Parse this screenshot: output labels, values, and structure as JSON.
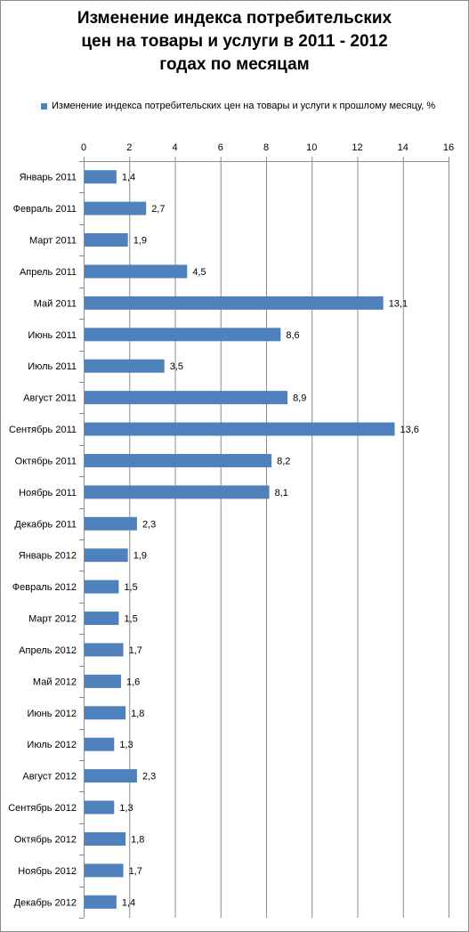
{
  "chart_data": {
    "type": "bar",
    "orientation": "horizontal",
    "title": "Изменение индекса потребительских\nцен на товары и услуги в 2011 - 2012\nгодах по месяцам",
    "legend": "top",
    "grid": true,
    "xlim": [
      0,
      16
    ],
    "ticks": [
      0,
      2,
      4,
      6,
      8,
      10,
      12,
      14,
      16
    ],
    "series": [
      {
        "name": "Изменение  индекса потребительских  цен на товары и услуги к прошлому месяцу, %",
        "color": "#4f81bd"
      }
    ],
    "categories": [
      "Январь 2011",
      "Февраль 2011",
      "Март 2011",
      "Апрель 2011",
      "Май 2011",
      "Июнь 2011",
      "Июль 2011",
      "Август 2011",
      "Сентябрь 2011",
      "Октябрь 2011",
      "Ноябрь 2011",
      "Декабрь 2011",
      "Январь 2012",
      "Февраль 2012",
      "Март 2012",
      "Апрель 2012",
      "Май 2012",
      "Июнь 2012",
      "Июль 2012",
      "Август 2012",
      "Сентябрь 2012",
      "Октябрь 2012",
      "Ноябрь 2012",
      "Декабрь 2012"
    ],
    "values": [
      1.4,
      2.7,
      1.9,
      4.5,
      13.1,
      8.6,
      3.5,
      8.9,
      13.6,
      8.2,
      8.1,
      2.3,
      1.9,
      1.5,
      1.5,
      1.7,
      1.6,
      1.8,
      1.3,
      2.3,
      1.3,
      1.8,
      1.7,
      1.4
    ],
    "value_labels": [
      "1,4",
      "2,7",
      "1,9",
      "4,5",
      "13,1",
      "8,6",
      "3,5",
      "8,9",
      "13,6",
      "8,2",
      "8,1",
      "2,3",
      "1,9",
      "1,5",
      "1,5",
      "1,7",
      "1,6",
      "1,8",
      "1,3",
      "2,3",
      "1,3",
      "1,8",
      "1,7",
      "1,4"
    ]
  }
}
